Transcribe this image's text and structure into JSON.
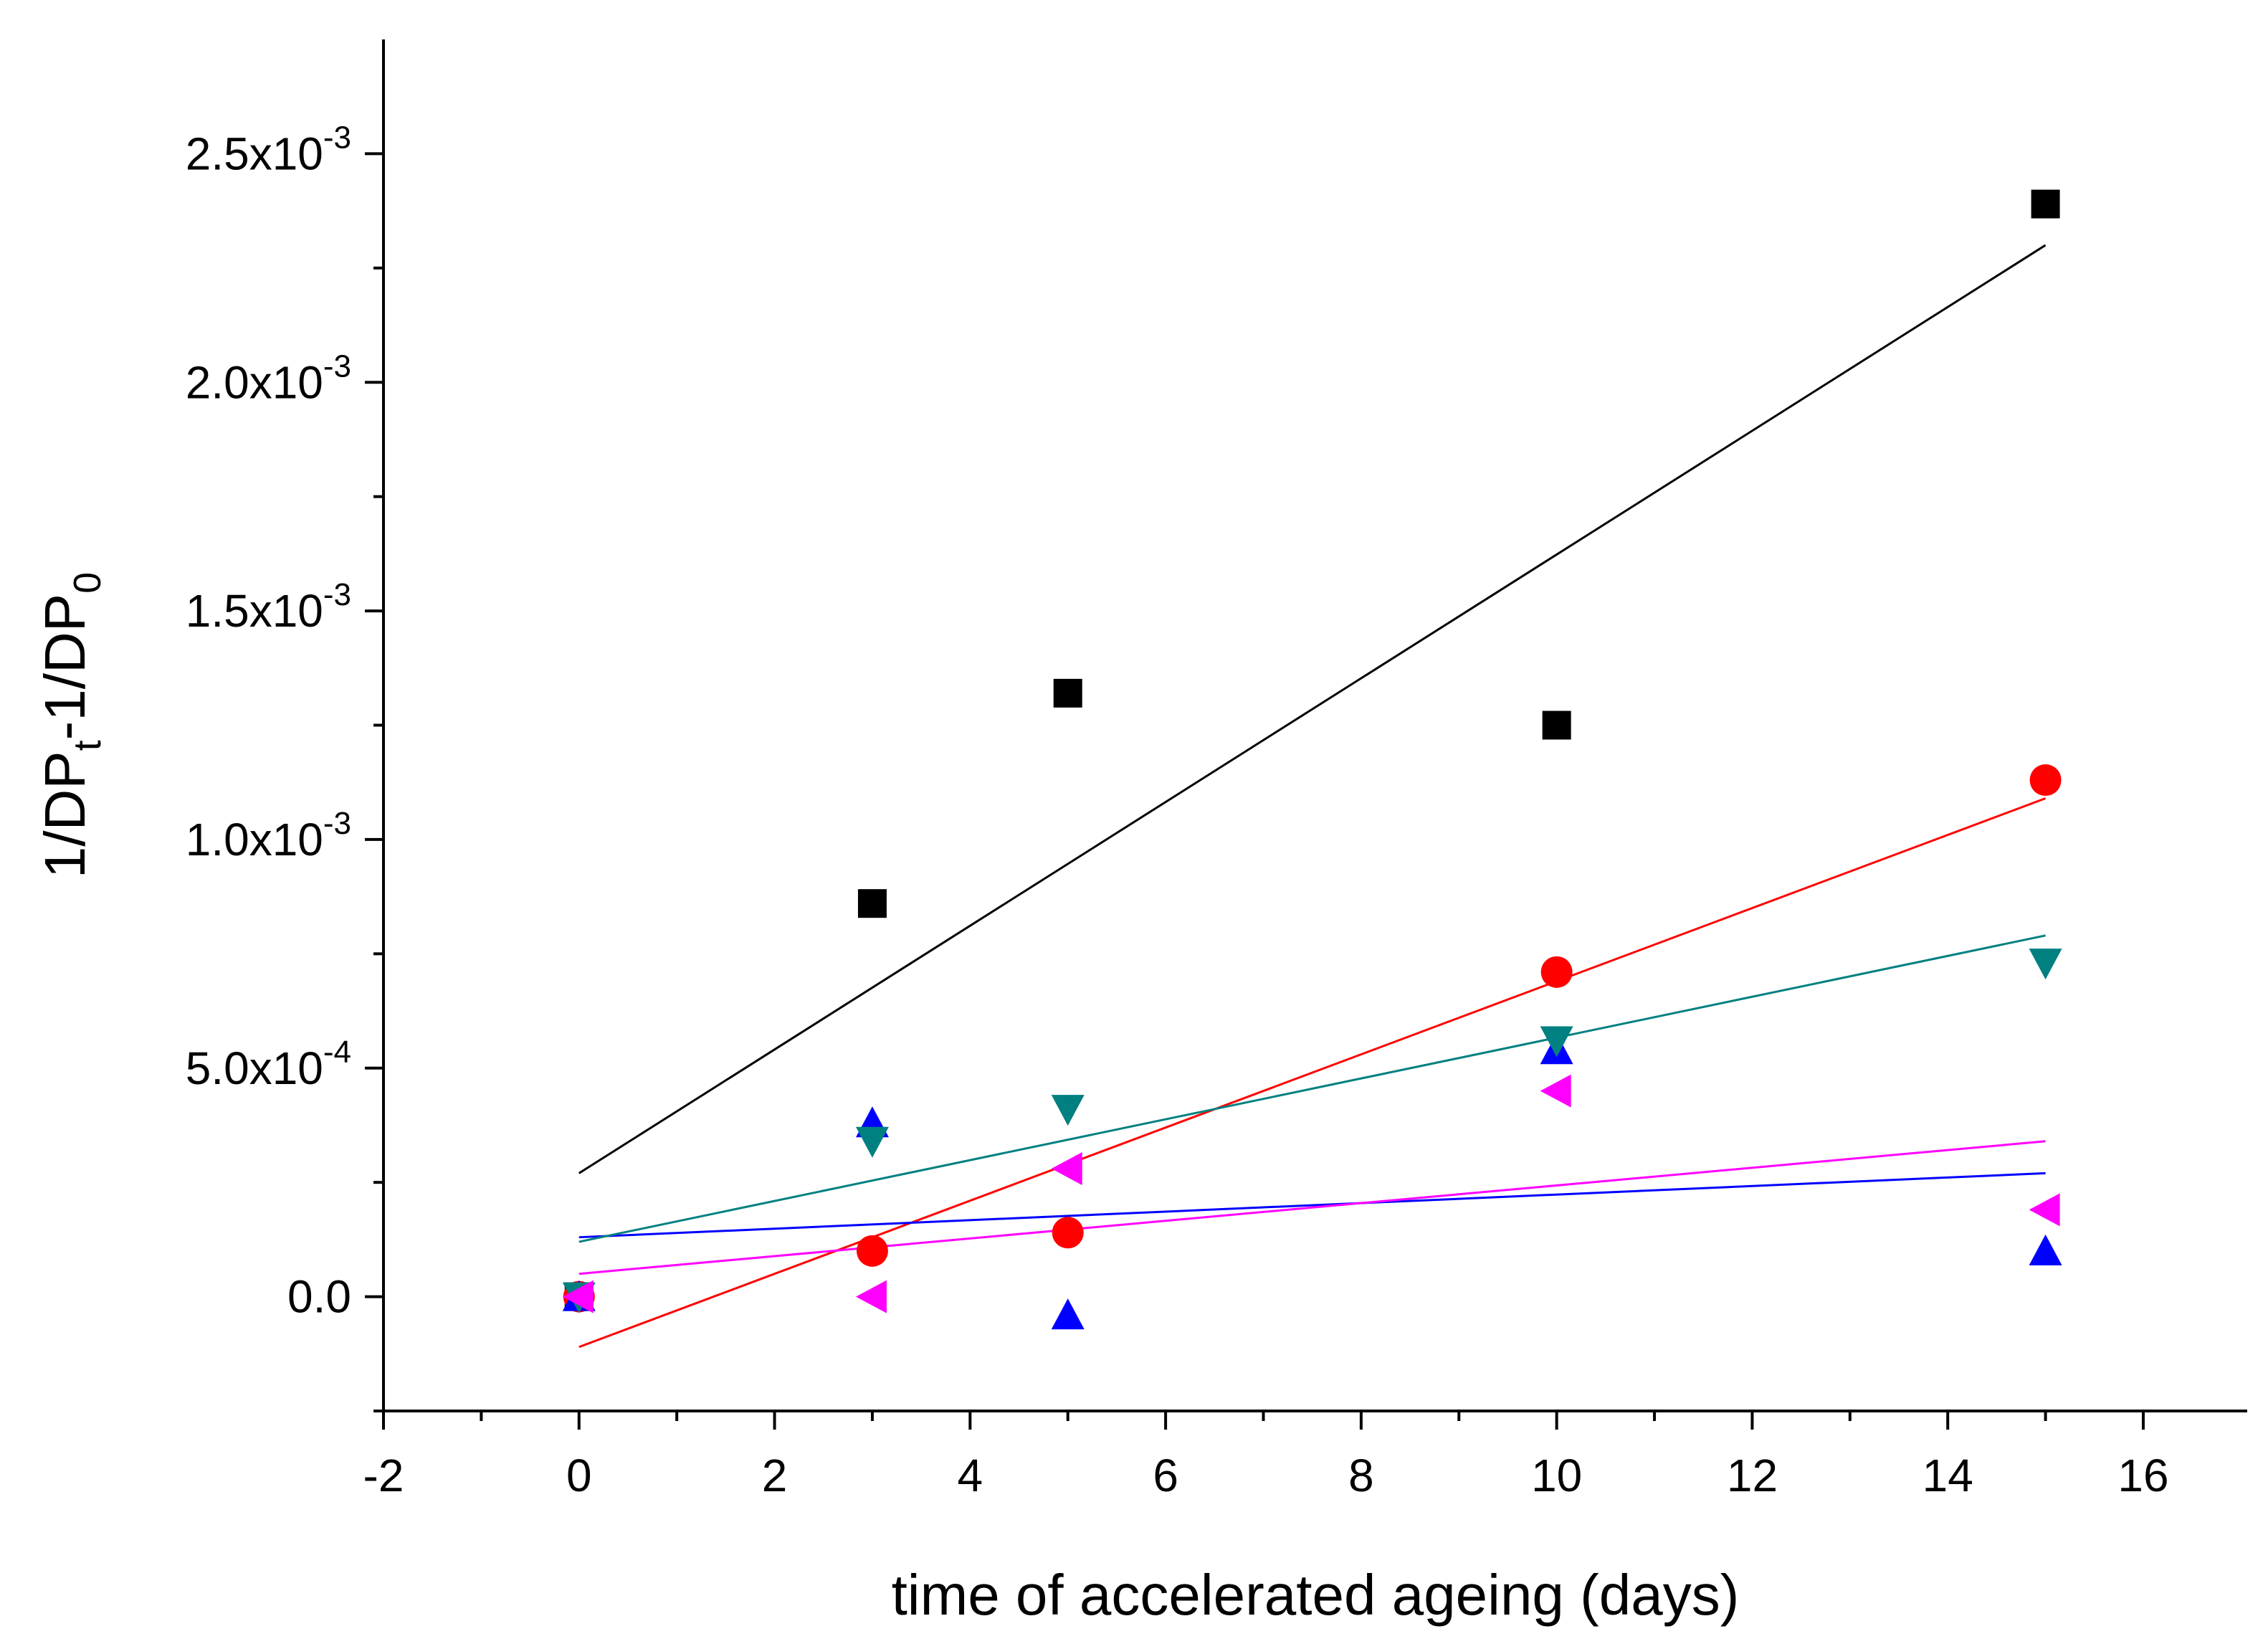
{
  "chart_data": {
    "type": "scatter",
    "title": "",
    "xlabel": "time of accelerated ageing (days)",
    "ylabel": {
      "part1": "1/DP",
      "sub1": "t",
      "part2": "-1/DP",
      "sub2": "0"
    },
    "xlim": [
      -2,
      17
    ],
    "ylim": [
      -0.00025,
      0.00275
    ],
    "x_ticks": [
      {
        "value": -2,
        "label": "-2"
      },
      {
        "value": 0,
        "label": "0"
      },
      {
        "value": 2,
        "label": "2"
      },
      {
        "value": 4,
        "label": "4"
      },
      {
        "value": 6,
        "label": "6"
      },
      {
        "value": 8,
        "label": "8"
      },
      {
        "value": 10,
        "label": "10"
      },
      {
        "value": 12,
        "label": "12"
      },
      {
        "value": 14,
        "label": "14"
      },
      {
        "value": 16,
        "label": "16"
      }
    ],
    "x_minor_ticks": [
      -1,
      1,
      3,
      5,
      7,
      9,
      11,
      13,
      15
    ],
    "y_ticks": [
      {
        "value": 0.0,
        "label": "0.0",
        "exp": ""
      },
      {
        "value": 0.0005,
        "label": "5.0x10",
        "exp": "-4"
      },
      {
        "value": 0.001,
        "label": "1.0x10",
        "exp": "-3"
      },
      {
        "value": 0.0015,
        "label": "1.5x10",
        "exp": "-3"
      },
      {
        "value": 0.002,
        "label": "2.0x10",
        "exp": "-3"
      },
      {
        "value": 0.0025,
        "label": "2.5x10",
        "exp": "-3"
      }
    ],
    "y_minor_ticks": [
      -0.00025,
      0.00025,
      0.00075,
      0.00125,
      0.00175,
      0.00225
    ],
    "grid": false,
    "legend": "none",
    "series": [
      {
        "name": "series-1",
        "marker": "square",
        "color": "#000000",
        "x": [
          0,
          3,
          5,
          10,
          15
        ],
        "y": [
          0.0,
          0.00086,
          0.00132,
          0.00125,
          0.00239
        ],
        "fit": {
          "x": [
            0,
            15
          ],
          "y": [
            0.00027,
            0.0023
          ]
        }
      },
      {
        "name": "series-2",
        "marker": "circle",
        "color": "#ff0000",
        "x": [
          0,
          3,
          5,
          10,
          15
        ],
        "y": [
          0.0,
          0.0001,
          0.00014,
          0.00071,
          0.00113
        ],
        "fit": {
          "x": [
            0,
            15
          ],
          "y": [
            -0.00011,
            0.00109
          ]
        }
      },
      {
        "name": "series-3",
        "marker": "triangle-up",
        "color": "#0000ff",
        "x": [
          0,
          3,
          5,
          10,
          15
        ],
        "y": [
          0.0,
          0.00038,
          -4e-05,
          0.00054,
          0.0001
        ],
        "fit": {
          "x": [
            0,
            15
          ],
          "y": [
            0.00013,
            0.00027
          ]
        }
      },
      {
        "name": "series-4",
        "marker": "triangle-down",
        "color": "#008080",
        "x": [
          0,
          3,
          5,
          10,
          15
        ],
        "y": [
          0.0,
          0.00034,
          0.00041,
          0.00056,
          0.00073
        ],
        "fit": {
          "x": [
            0,
            15
          ],
          "y": [
            0.00012,
            0.00079
          ]
        }
      },
      {
        "name": "series-5",
        "marker": "triangle-left",
        "color": "#ff00ff",
        "x": [
          0,
          3,
          5,
          10,
          15
        ],
        "y": [
          0.0,
          0.0,
          0.00028,
          0.00045,
          0.00019
        ],
        "fit": {
          "x": [
            0,
            15
          ],
          "y": [
            5e-05,
            0.00034
          ]
        }
      }
    ]
  }
}
